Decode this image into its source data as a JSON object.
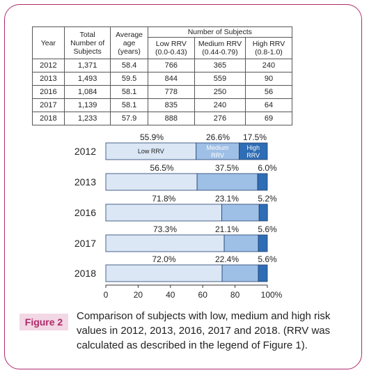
{
  "table": {
    "headers": {
      "year": "Year",
      "total": [
        "Total",
        "Number of",
        "Subjects"
      ],
      "age": [
        "Average",
        "age",
        "(years)"
      ],
      "group": "Number of Subjects",
      "low": [
        "Low RRV",
        "(0.0-0.43)"
      ],
      "medium": [
        "Medium RRV",
        "(0.44-0.79)"
      ],
      "high": [
        "High RRV",
        "(0.8-1.0)"
      ]
    },
    "rows": [
      [
        "2012",
        "1,371",
        "58.4",
        "766",
        "365",
        "240"
      ],
      [
        "2013",
        "1,493",
        "59.5",
        "844",
        "559",
        "90"
      ],
      [
        "2016",
        "1,084",
        "58.1",
        "778",
        "250",
        "56"
      ],
      [
        "2017",
        "1,139",
        "58.1",
        "835",
        "240",
        "64"
      ],
      [
        "2018",
        "1,233",
        "57.9",
        "888",
        "276",
        "69"
      ]
    ]
  },
  "chart_data": {
    "type": "bar",
    "orientation": "horizontal",
    "stacked": true,
    "categories": [
      "2012",
      "2013",
      "2016",
      "2017",
      "2018"
    ],
    "series": [
      {
        "name": "Low RRV",
        "values": [
          55.9,
          56.5,
          71.8,
          73.3,
          72.0
        ],
        "color": "#dce7f5"
      },
      {
        "name": "Medium RRV",
        "values": [
          26.6,
          37.5,
          23.1,
          21.1,
          22.4
        ],
        "color": "#9ebfe6"
      },
      {
        "name": "High RRV",
        "values": [
          17.5,
          6.0,
          5.2,
          5.6,
          5.6
        ],
        "color": "#2f6db5"
      }
    ],
    "value_labels": [
      [
        "55.9%",
        "26.6%",
        "17.5%"
      ],
      [
        "56.5%",
        "37.5%",
        "6.0%"
      ],
      [
        "71.8%",
        "23.1%",
        "5.2%"
      ],
      [
        "73.3%",
        "21.1%",
        "5.6%"
      ],
      [
        "72.0%",
        "22.4%",
        "5.6%"
      ]
    ],
    "in_bar_labels": {
      "low": "Low RRV",
      "medium": [
        "Medium",
        "RRV"
      ],
      "high": [
        "High",
        "RRV"
      ]
    },
    "x_ticks": [
      "0",
      "20",
      "40",
      "60",
      "80",
      "100%"
    ],
    "xlim": [
      0,
      100
    ],
    "grid": false
  },
  "caption": {
    "label": "Figure 2",
    "text": "Comparison of subjects with low, medium and high risk values in 2012, 2013, 2016, 2017 and 2018.  (RRV was calculated as described in the legend of Figure 1)."
  }
}
